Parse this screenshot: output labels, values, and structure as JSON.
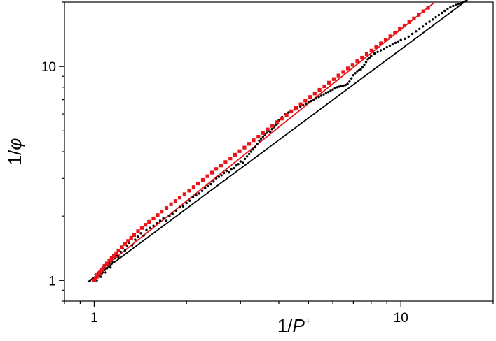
{
  "chart_data": {
    "type": "scatter",
    "xscale": "log",
    "yscale": "log",
    "xlim": [
      0.8,
      20
    ],
    "ylim": [
      0.8,
      20
    ],
    "xlabel_main": "1/",
    "xlabel_var": "P",
    "xlabel_sup": "+",
    "ylabel_main": "1/",
    "ylabel_var": "φ",
    "x_ticks": [
      1,
      10
    ],
    "x_tick_labels": [
      "1",
      "10"
    ],
    "y_ticks": [
      1,
      10
    ],
    "y_tick_labels": [
      "1",
      "10"
    ],
    "grid": false,
    "colors": {
      "black": "#000000",
      "red": "#e8141a"
    },
    "series": [
      {
        "color": "#000000",
        "marker": "dot",
        "points": [
          [
            0.97,
            1.0
          ],
          [
            0.99,
            1.01
          ],
          [
            1.0,
            1.02
          ],
          [
            1.01,
            1.03
          ],
          [
            1.02,
            1.0
          ],
          [
            1.03,
            1.05
          ],
          [
            1.04,
            1.06
          ],
          [
            1.05,
            1.04
          ],
          [
            1.06,
            1.08
          ],
          [
            1.07,
            1.1
          ],
          [
            1.08,
            1.12
          ],
          [
            1.09,
            1.09
          ],
          [
            1.1,
            1.14
          ],
          [
            1.11,
            1.18
          ],
          [
            1.12,
            1.2
          ],
          [
            1.13,
            1.15
          ],
          [
            1.15,
            1.22
          ],
          [
            1.17,
            1.27
          ],
          [
            1.19,
            1.31
          ],
          [
            1.2,
            1.28
          ],
          [
            1.22,
            1.36
          ],
          [
            1.24,
            1.41
          ],
          [
            1.26,
            1.38
          ],
          [
            1.28,
            1.45
          ],
          [
            1.3,
            1.5
          ],
          [
            1.33,
            1.46
          ],
          [
            1.36,
            1.55
          ],
          [
            1.39,
            1.6
          ],
          [
            1.42,
            1.66
          ],
          [
            1.45,
            1.62
          ],
          [
            1.48,
            1.72
          ],
          [
            1.52,
            1.76
          ],
          [
            1.56,
            1.8
          ],
          [
            1.6,
            1.86
          ],
          [
            1.64,
            1.9
          ],
          [
            1.68,
            1.95
          ],
          [
            1.72,
            1.9
          ],
          [
            1.76,
            2.0
          ],
          [
            1.8,
            2.05
          ],
          [
            1.85,
            2.12
          ],
          [
            1.9,
            2.2
          ],
          [
            1.95,
            2.22
          ],
          [
            2.0,
            2.3
          ],
          [
            2.05,
            2.36
          ],
          [
            2.1,
            2.45
          ],
          [
            2.15,
            2.5
          ],
          [
            2.2,
            2.55
          ],
          [
            2.25,
            2.62
          ],
          [
            2.3,
            2.7
          ],
          [
            2.35,
            2.76
          ],
          [
            2.4,
            2.82
          ],
          [
            2.45,
            2.9
          ],
          [
            2.5,
            3.0
          ],
          [
            2.55,
            3.05
          ],
          [
            2.6,
            3.1
          ],
          [
            2.65,
            3.18
          ],
          [
            2.7,
            3.25
          ],
          [
            2.75,
            3.2
          ],
          [
            2.8,
            3.3
          ],
          [
            2.85,
            3.35
          ],
          [
            2.9,
            3.45
          ],
          [
            2.95,
            3.5
          ],
          [
            3.0,
            3.6
          ],
          [
            3.05,
            3.55
          ],
          [
            3.1,
            3.7
          ],
          [
            3.15,
            3.8
          ],
          [
            3.2,
            3.9
          ],
          [
            3.25,
            4.0
          ],
          [
            3.3,
            4.1
          ],
          [
            3.35,
            4.2
          ],
          [
            3.4,
            4.35
          ],
          [
            3.45,
            4.5
          ],
          [
            3.5,
            4.6
          ],
          [
            3.55,
            4.7
          ],
          [
            3.6,
            4.8
          ],
          [
            3.65,
            4.9
          ],
          [
            3.7,
            5.0
          ],
          [
            3.75,
            4.95
          ],
          [
            3.8,
            5.1
          ],
          [
            3.85,
            5.2
          ],
          [
            3.9,
            5.3
          ],
          [
            3.95,
            5.4
          ],
          [
            4.0,
            5.6
          ],
          [
            4.1,
            5.8
          ],
          [
            4.2,
            6.0
          ],
          [
            4.3,
            6.1
          ],
          [
            4.4,
            6.2
          ],
          [
            4.5,
            6.3
          ],
          [
            4.6,
            6.4
          ],
          [
            4.7,
            6.5
          ],
          [
            4.8,
            6.6
          ],
          [
            4.9,
            6.7
          ],
          [
            5.0,
            6.8
          ],
          [
            5.1,
            6.9
          ],
          [
            5.2,
            7.0
          ],
          [
            5.3,
            7.1
          ],
          [
            5.4,
            7.2
          ],
          [
            5.5,
            7.3
          ],
          [
            5.6,
            7.4
          ],
          [
            5.7,
            7.5
          ],
          [
            5.8,
            7.6
          ],
          [
            5.9,
            7.7
          ],
          [
            6.0,
            7.8
          ],
          [
            6.1,
            7.9
          ],
          [
            6.2,
            8.0
          ],
          [
            6.3,
            8.05
          ],
          [
            6.4,
            8.1
          ],
          [
            6.5,
            8.15
          ],
          [
            6.6,
            8.2
          ],
          [
            6.7,
            8.3
          ],
          [
            6.8,
            8.5
          ],
          [
            6.9,
            8.8
          ],
          [
            7.0,
            9.1
          ],
          [
            7.1,
            9.3
          ],
          [
            7.2,
            9.5
          ],
          [
            7.3,
            9.6
          ],
          [
            7.4,
            9.7
          ],
          [
            7.5,
            9.9
          ],
          [
            7.6,
            10.2
          ],
          [
            7.7,
            10.5
          ],
          [
            7.8,
            10.8
          ],
          [
            7.9,
            11.0
          ],
          [
            8.0,
            11.2
          ],
          [
            8.2,
            11.5
          ],
          [
            8.4,
            11.7
          ],
          [
            8.6,
            11.9
          ],
          [
            8.8,
            12.1
          ],
          [
            9.0,
            12.3
          ],
          [
            9.2,
            12.5
          ],
          [
            9.4,
            12.7
          ],
          [
            9.6,
            12.9
          ],
          [
            9.8,
            13.1
          ],
          [
            10.0,
            13.3
          ],
          [
            10.3,
            13.5
          ],
          [
            10.6,
            13.8
          ],
          [
            10.9,
            14.2
          ],
          [
            11.2,
            14.6
          ],
          [
            11.5,
            15.0
          ],
          [
            11.8,
            15.4
          ],
          [
            12.1,
            15.8
          ],
          [
            12.4,
            16.2
          ],
          [
            12.7,
            16.6
          ],
          [
            13.0,
            17.0
          ],
          [
            13.3,
            17.4
          ],
          [
            13.6,
            17.8
          ],
          [
            13.9,
            18.2
          ],
          [
            14.2,
            18.6
          ],
          [
            14.5,
            18.9
          ],
          [
            14.8,
            19.2
          ],
          [
            15.1,
            19.4
          ],
          [
            15.4,
            19.6
          ],
          [
            15.7,
            19.8
          ],
          [
            16.0,
            20.0
          ],
          [
            16.3,
            20.2
          ]
        ]
      },
      {
        "color": "#e8141a",
        "marker": "square",
        "points": [
          [
            1.0,
            1.0
          ],
          [
            1.01,
            1.02
          ],
          [
            1.02,
            1.04
          ],
          [
            1.03,
            1.06
          ],
          [
            1.04,
            1.08
          ],
          [
            1.05,
            1.1
          ],
          [
            1.06,
            1.12
          ],
          [
            1.07,
            1.15
          ],
          [
            1.08,
            1.17
          ],
          [
            1.1,
            1.2
          ],
          [
            1.12,
            1.24
          ],
          [
            1.14,
            1.27
          ],
          [
            1.16,
            1.3
          ],
          [
            1.18,
            1.34
          ],
          [
            1.2,
            1.38
          ],
          [
            1.23,
            1.43
          ],
          [
            1.26,
            1.48
          ],
          [
            1.29,
            1.53
          ],
          [
            1.32,
            1.58
          ],
          [
            1.35,
            1.63
          ],
          [
            1.39,
            1.7
          ],
          [
            1.43,
            1.76
          ],
          [
            1.47,
            1.82
          ],
          [
            1.51,
            1.88
          ],
          [
            1.56,
            1.95
          ],
          [
            1.61,
            2.02
          ],
          [
            1.66,
            2.1
          ],
          [
            1.72,
            2.18
          ],
          [
            1.78,
            2.27
          ],
          [
            1.84,
            2.35
          ],
          [
            1.9,
            2.44
          ],
          [
            1.97,
            2.53
          ],
          [
            2.04,
            2.63
          ],
          [
            2.11,
            2.73
          ],
          [
            2.18,
            2.84
          ],
          [
            2.26,
            2.95
          ],
          [
            2.34,
            3.07
          ],
          [
            2.42,
            3.19
          ],
          [
            2.5,
            3.32
          ],
          [
            2.59,
            3.45
          ],
          [
            2.68,
            3.58
          ],
          [
            2.78,
            3.72
          ],
          [
            2.88,
            3.87
          ],
          [
            2.98,
            4.02
          ],
          [
            3.09,
            4.18
          ],
          [
            3.2,
            4.35
          ],
          [
            3.31,
            4.52
          ],
          [
            3.43,
            4.7
          ],
          [
            3.55,
            4.89
          ],
          [
            3.68,
            5.08
          ],
          [
            3.81,
            5.28
          ],
          [
            3.95,
            5.49
          ],
          [
            4.09,
            5.71
          ],
          [
            4.24,
            5.93
          ],
          [
            4.39,
            6.17
          ],
          [
            4.55,
            6.41
          ],
          [
            4.71,
            6.66
          ],
          [
            4.88,
            6.93
          ],
          [
            5.06,
            7.2
          ],
          [
            5.24,
            7.48
          ],
          [
            5.43,
            7.78
          ],
          [
            5.63,
            8.08
          ],
          [
            5.83,
            8.4
          ],
          [
            6.04,
            8.73
          ],
          [
            6.26,
            9.07
          ],
          [
            6.49,
            9.43
          ],
          [
            6.72,
            9.8
          ],
          [
            6.96,
            10.18
          ],
          [
            7.21,
            10.58
          ],
          [
            7.47,
            11.0
          ],
          [
            7.74,
            11.43
          ],
          [
            8.02,
            11.88
          ],
          [
            8.31,
            12.34
          ],
          [
            8.61,
            12.83
          ],
          [
            8.92,
            13.33
          ],
          [
            9.24,
            13.85
          ],
          [
            9.57,
            14.39
          ],
          [
            9.92,
            14.96
          ],
          [
            10.28,
            15.54
          ],
          [
            10.65,
            16.15
          ],
          [
            11.03,
            16.78
          ],
          [
            11.43,
            17.44
          ],
          [
            11.84,
            18.12
          ],
          [
            12.27,
            18.83
          ]
        ]
      }
    ],
    "fits": [
      {
        "color": "#000000",
        "x": [
          0.95,
          16.5
        ],
        "y": [
          0.98,
          20.5
        ]
      },
      {
        "color": "#e8141a",
        "x": [
          1.0,
          12.8
        ],
        "y": [
          1.06,
          19.8
        ]
      }
    ]
  }
}
